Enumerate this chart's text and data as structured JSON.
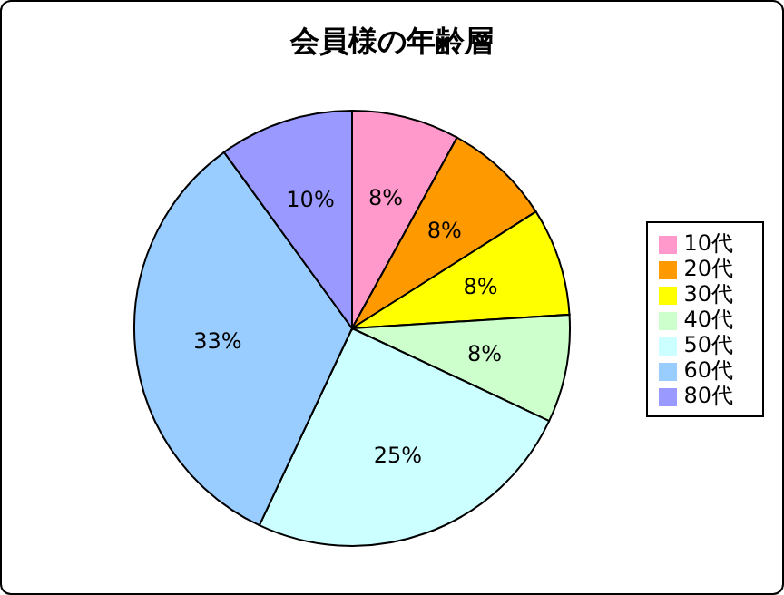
{
  "chart_data": {
    "type": "pie",
    "title": "会員様の年齢層",
    "categories": [
      "10代",
      "20代",
      "30代",
      "40代",
      "50代",
      "60代",
      "80代"
    ],
    "values": [
      8,
      8,
      8,
      8,
      25,
      33,
      10
    ],
    "value_labels": [
      "8%",
      "8%",
      "8%",
      "8%",
      "25%",
      "33%",
      "10%"
    ],
    "colors": [
      "#ff99cc",
      "#ff9900",
      "#ffff00",
      "#ccffcc",
      "#ccffff",
      "#99ccff",
      "#9999ff"
    ],
    "legend": "right"
  }
}
